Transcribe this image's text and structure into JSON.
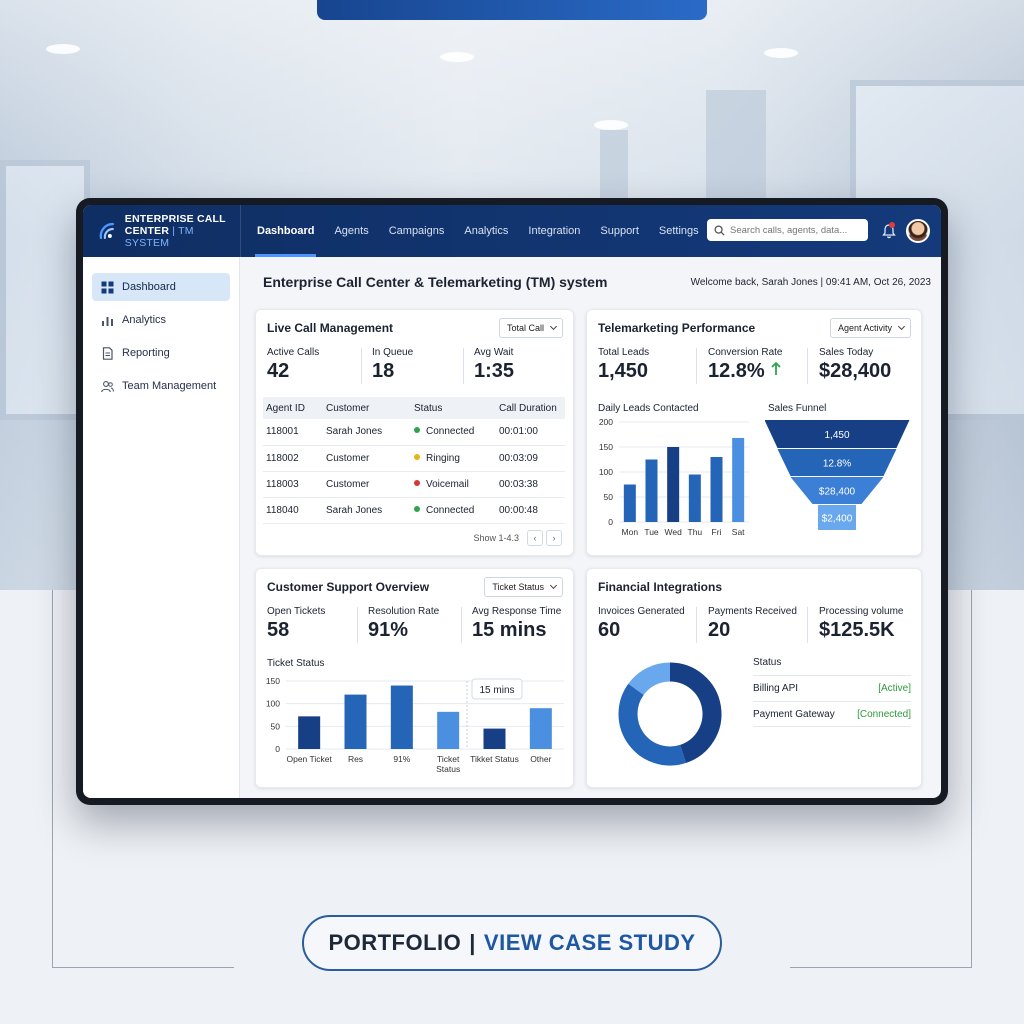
{
  "header": {
    "logo_line1": "ENTERPRISE CALL",
    "logo_line2a": "CENTER",
    "logo_line2b": "| TM SYSTEM",
    "nav": [
      "Dashboard",
      "Agents",
      "Campaigns",
      "Analytics",
      "Integration",
      "Support",
      "Settings"
    ],
    "active_nav": "Dashboard",
    "search_placeholder": "Search calls, agents, data..."
  },
  "sidebar": {
    "items": [
      {
        "label": "Dashboard",
        "icon": "grid-icon",
        "active": true
      },
      {
        "label": "Analytics",
        "icon": "bar-chart-icon",
        "active": false
      },
      {
        "label": "Reporting",
        "icon": "document-icon",
        "active": false
      },
      {
        "label": "Team Management",
        "icon": "team-icon",
        "active": false
      }
    ]
  },
  "page": {
    "title": "Enterprise Call Center & Telemarketing (TM) system",
    "welcome": "Welcome back, Sarah Jones | 09:41 AM, Oct 26, 2023"
  },
  "live_calls": {
    "title": "Live Call Management",
    "dropdown": "Total Call",
    "stats": [
      {
        "label": "Active Calls",
        "value": "42"
      },
      {
        "label": "In Queue",
        "value": "18"
      },
      {
        "label": "Avg Wait",
        "value": "1:35"
      }
    ],
    "columns": [
      "Agent ID",
      "Customer",
      "Status",
      "Call Duration"
    ],
    "rows": [
      {
        "agent": "118001",
        "customer": "Sarah Jones",
        "status": "Connected",
        "duration": "00:01:00"
      },
      {
        "agent": "118002",
        "customer": "Customer",
        "status": "Ringing",
        "duration": "00:03:09"
      },
      {
        "agent": "118003",
        "customer": "Customer",
        "status": "Voicemail",
        "duration": "00:03:38"
      },
      {
        "agent": "118040",
        "customer": "Sarah Jones",
        "status": "Connected",
        "duration": "00:00:48"
      }
    ],
    "pager": "Show 1-4.3"
  },
  "telemarketing": {
    "title": "Telemarketing Performance",
    "dropdown": "Agent Activity",
    "stats": [
      {
        "label": "Total Leads",
        "value": "1,450"
      },
      {
        "label": "Conversion Rate",
        "value": "12.8%"
      },
      {
        "label": "Sales Today",
        "value": "$28,400"
      }
    ],
    "leads_label": "Daily Leads Contacted",
    "funnel_label": "Sales Funnel"
  },
  "support": {
    "title": "Customer Support Overview",
    "dropdown": "Ticket Status",
    "stats": [
      {
        "label": "Open Tickets",
        "value": "58"
      },
      {
        "label": "Resolution Rate",
        "value": "91%"
      },
      {
        "label": "Avg Response Time",
        "value": "15 mins"
      }
    ],
    "ticket_label": "Ticket Status",
    "tooltip": "15 mins"
  },
  "financial": {
    "title": "Financial Integrations",
    "stats": [
      {
        "label": "Invoices Generated",
        "value": "60"
      },
      {
        "label": "Payments Received",
        "value": "20"
      },
      {
        "label": "Processing volume",
        "value": "$125.5K"
      }
    ],
    "status_header": "Status",
    "status_rows": [
      {
        "name": "Billing API",
        "value": "[Active]"
      },
      {
        "name": "Payment Gateway",
        "value": "[Connected]"
      }
    ]
  },
  "cta": {
    "part1": "PORTFOLIO",
    "sep": "|",
    "part2": "VIEW CASE STUDY"
  },
  "colors": {
    "connected": "#2ea44f",
    "ringing": "#e7b416",
    "voicemail": "#d93636",
    "bar_dark": "#173f86",
    "bar_mid": "#2465b8",
    "bar_light": "#4a8fe0"
  },
  "chart_data": [
    {
      "type": "bar",
      "title": "Daily Leads Contacted",
      "categories": [
        "Mon",
        "Tue",
        "Wed",
        "Thu",
        "Fri",
        "Sat"
      ],
      "values": [
        75,
        125,
        150,
        95,
        130,
        168
      ],
      "yticks": [
        0,
        50,
        100,
        150,
        200
      ],
      "ylim": [
        0,
        200
      ]
    },
    {
      "type": "funnel",
      "title": "Sales Funnel",
      "stages": [
        "1,450",
        "12.8%",
        "$28,400",
        "$2,400"
      ]
    },
    {
      "type": "bar",
      "title": "Ticket Status",
      "categories": [
        "Open Ticket",
        "Res",
        "91%",
        "Ticket Status",
        "Tikket Status",
        "Other"
      ],
      "values": [
        72,
        120,
        140,
        82,
        45,
        90
      ],
      "yticks": [
        0,
        50,
        100,
        150
      ],
      "ylim": [
        0,
        150
      ]
    },
    {
      "type": "pie",
      "title": "",
      "values": [
        45,
        40,
        15
      ]
    }
  ]
}
